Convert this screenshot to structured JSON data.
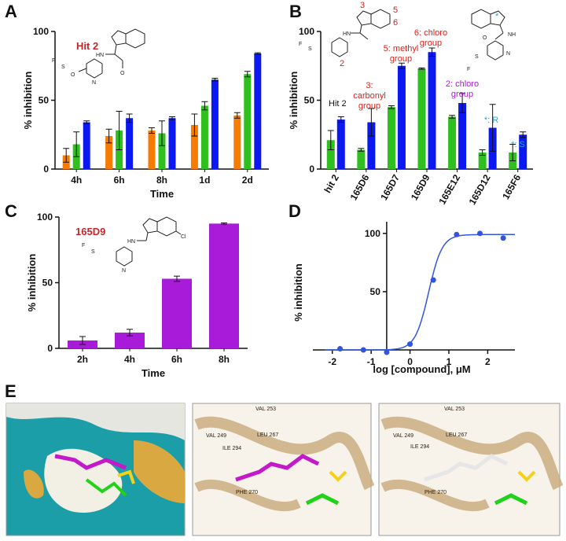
{
  "panels": {
    "A": "A",
    "B": "B",
    "C": "C",
    "D": "D",
    "E": "E"
  },
  "colors": {
    "orange": "#f57c00",
    "green": "#2fbf1f",
    "blue": "#0b19f0",
    "purple": "#a81bd9",
    "fit": "#3355dd",
    "tan": "#c8a97a",
    "teal": "#1c9ea8"
  },
  "chart_data": [
    {
      "panel": "A",
      "type": "bar",
      "categories": [
        "4h",
        "6h",
        "8h",
        "1d",
        "2d"
      ],
      "series": [
        {
          "color": "orange",
          "values": [
            10,
            24,
            28,
            32,
            39
          ],
          "errors": [
            5,
            5,
            2,
            8,
            2
          ]
        },
        {
          "color": "green",
          "values": [
            18,
            28,
            26,
            46,
            69
          ],
          "errors": [
            9,
            14,
            9,
            3,
            2
          ]
        },
        {
          "color": "blue",
          "values": [
            34,
            37,
            37,
            65,
            84
          ],
          "errors": [
            1,
            3,
            1,
            1,
            0.5
          ]
        }
      ],
      "xlabel": "Time",
      "ylabel": "% inhibition",
      "ylim": [
        0,
        100
      ],
      "yticks": [
        0,
        50,
        100
      ],
      "compound_label": "Hit 2"
    },
    {
      "panel": "B",
      "type": "bar",
      "categories": [
        "hit 2",
        "165D6",
        "165D7",
        "165D9",
        "165E12",
        "165D12",
        "165F6"
      ],
      "series": [
        {
          "color": "green",
          "values": [
            21,
            14,
            45,
            73,
            38,
            12,
            12
          ],
          "errors": [
            7,
            1,
            1,
            0.5,
            1,
            2,
            6
          ]
        },
        {
          "color": "blue",
          "values": [
            36,
            34,
            75,
            85,
            48,
            30,
            25
          ],
          "errors": [
            2,
            10,
            2,
            3,
            7,
            17,
            2
          ]
        }
      ],
      "xlabel": "",
      "ylabel": "% inhibition",
      "ylim": [
        0,
        100
      ],
      "yticks": [
        0,
        50,
        100
      ],
      "annotations": {
        "hit2": "Hit 2",
        "carbonyl": [
          "3:",
          "carbonyl",
          "group"
        ],
        "methyl": [
          "5: methyl",
          "group"
        ],
        "chloro6": [
          "6: chloro",
          "group"
        ],
        "chloro2": [
          "2: chloro",
          "group"
        ],
        "r": "*: R",
        "s": "*: S"
      },
      "ring_numbers": [
        "2",
        "3",
        "5",
        "6"
      ]
    },
    {
      "panel": "C",
      "type": "bar",
      "categories": [
        "2h",
        "4h",
        "6h",
        "8h"
      ],
      "series": [
        {
          "color": "purple",
          "values": [
            6,
            12,
            53,
            95
          ],
          "errors": [
            3,
            2.5,
            2,
            0.5
          ]
        }
      ],
      "xlabel": "Time",
      "ylabel": "% inhibition",
      "ylim": [
        0,
        100
      ],
      "yticks": [
        0,
        50,
        100
      ],
      "compound_label": "165D9"
    },
    {
      "panel": "D",
      "type": "scatter",
      "x": [
        -1.8,
        -1.2,
        -0.6,
        0.0,
        0.6,
        1.2,
        1.8,
        2.4
      ],
      "y": [
        1,
        0,
        -2,
        5,
        60,
        99,
        100,
        96
      ],
      "fit": {
        "bottom": 0,
        "top": 99,
        "logEC50": 0.48,
        "hill": 2.5
      },
      "xlabel": "log [compound], μM",
      "ylabel": "% inhibition",
      "xlim": [
        -2.5,
        2.7
      ],
      "ylim": [
        -2,
        110
      ],
      "xticks": [
        -2,
        -1,
        0,
        1,
        2
      ],
      "yticks": [
        50,
        100
      ]
    }
  ],
  "panel_e": {
    "residues_middle": [
      "VAL 253",
      "VAL 249",
      "LEU 267",
      "ILE 294",
      "PHE 270"
    ],
    "residues_right": [
      "VAL 253",
      "VAL 249",
      "LEU 267",
      "ILE 294",
      "PHE 270"
    ]
  },
  "mol_text": {
    "nh": "NH",
    "hn": "HN",
    "o": "O",
    "f": "F",
    "n": "N",
    "cl": "Cl",
    "s": "S"
  }
}
